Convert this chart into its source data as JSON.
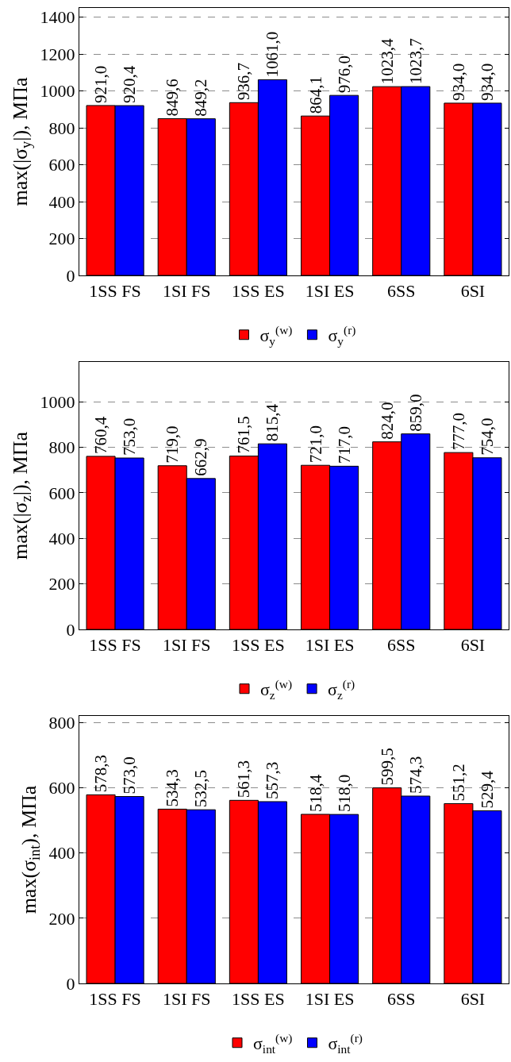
{
  "chart_data": [
    {
      "type": "bar",
      "ylabel": "max(|σ$_{y}$|), МПа",
      "categories": [
        "1SS FS",
        "1SI FS",
        "1SS ES",
        "1SI ES",
        "6SS",
        "6SI"
      ],
      "series": [
        {
          "name": "σ$_{y}$$^{(w)}$",
          "color": "#ff0000",
          "values": [
            921.0,
            849.6,
            936.7,
            864.1,
            1023.4,
            934.0
          ],
          "value_labels": [
            "921,0",
            "849,6",
            "936,7",
            "864,1",
            "1023,4",
            "934,0"
          ]
        },
        {
          "name": "σ$_{y}$$^{(r)}$",
          "color": "#0000ff",
          "values": [
            920.4,
            849.2,
            1061.0,
            976.0,
            1023.7,
            934.0
          ],
          "value_labels": [
            "920,4",
            "849,2",
            "1061,0",
            "976,0",
            "1023,7",
            "934,0"
          ]
        }
      ],
      "ylim": [
        0,
        1450
      ],
      "yticks": [
        0,
        200,
        400,
        600,
        800,
        1000,
        1200,
        1400
      ],
      "grid": "y",
      "legend": "bottom"
    },
    {
      "type": "bar",
      "ylabel": "max(|σ$_{z}$|), МПа",
      "categories": [
        "1SS FS",
        "1SI FS",
        "1SS ES",
        "1SI ES",
        "6SS",
        "6SI"
      ],
      "series": [
        {
          "name": "σ$_{z}$$^{(w)}$",
          "color": "#ff0000",
          "values": [
            760.4,
            719.0,
            761.5,
            721.0,
            824.0,
            777.0
          ],
          "value_labels": [
            "760,4",
            "719,0",
            "761,5",
            "721,0",
            "824,0",
            "777,0"
          ]
        },
        {
          "name": "σ$_{z}$$^{(r)}$",
          "color": "#0000ff",
          "values": [
            753.0,
            662.9,
            815.4,
            717.0,
            859.0,
            754.0
          ],
          "value_labels": [
            "753,0",
            "662,9",
            "815,4",
            "717,0",
            "859,0",
            "754,0"
          ]
        }
      ],
      "ylim": [
        0,
        1175
      ],
      "yticks": [
        0,
        200,
        400,
        600,
        800,
        1000
      ],
      "grid": "y",
      "legend": "bottom"
    },
    {
      "type": "bar",
      "ylabel": "max(σ$_{int}$), МПа",
      "categories": [
        "1SS FS",
        "1SI FS",
        "1SS ES",
        "1SI ES",
        "6SS",
        "6SI"
      ],
      "series": [
        {
          "name": "σ$_{int}$$^{(w)}$",
          "color": "#ff0000",
          "values": [
            578.3,
            534.3,
            561.3,
            518.4,
            599.5,
            551.2
          ],
          "value_labels": [
            "578,3",
            "534,3",
            "561,3",
            "518,4",
            "599,5",
            "551,2"
          ]
        },
        {
          "name": "σ$_{int}$$^{(r)}$",
          "color": "#0000ff",
          "values": [
            573.0,
            532.5,
            557.3,
            518.0,
            574.3,
            529.4
          ],
          "value_labels": [
            "573,0",
            "532,5",
            "557,3",
            "518,0",
            "574,3",
            "529,4"
          ]
        }
      ],
      "ylim": [
        0,
        820
      ],
      "yticks": [
        0,
        200,
        400,
        600,
        800
      ],
      "grid": "y",
      "legend": "bottom"
    }
  ]
}
